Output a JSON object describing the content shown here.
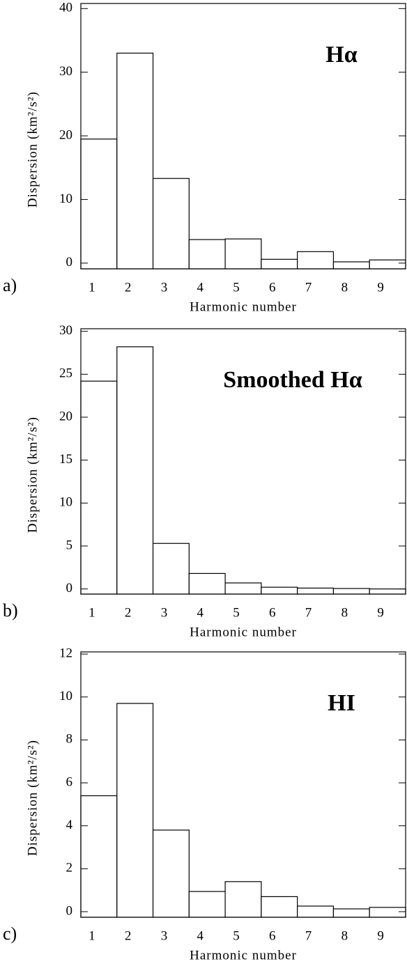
{
  "chart_data": [
    {
      "type": "bar",
      "label": "a)",
      "title": "Hα",
      "xlabel": "Harmonic number",
      "ylabel": "Dispersion (km²/s²)",
      "categories": [
        "1",
        "2",
        "3",
        "4",
        "5",
        "6",
        "7",
        "8",
        "9"
      ],
      "values": [
        19.5,
        33.0,
        13.3,
        3.7,
        3.8,
        0.6,
        1.8,
        0.2,
        0.5
      ],
      "ylim": [
        -0.9,
        40.8
      ],
      "yticks": [
        0,
        10,
        20,
        30,
        40
      ]
    },
    {
      "type": "bar",
      "label": "b)",
      "title": "Smoothed Hα",
      "xlabel": "Harmonic number",
      "ylabel": "Dispersion (km²/s²)",
      "categories": [
        "1",
        "2",
        "3",
        "4",
        "5",
        "6",
        "7",
        "8",
        "9"
      ],
      "values": [
        24.2,
        28.2,
        5.3,
        1.8,
        0.7,
        0.2,
        0.1,
        0.05,
        0
      ],
      "ylim": [
        -0.6,
        30.3
      ],
      "yticks": [
        0,
        5,
        10,
        15,
        20,
        25,
        30
      ]
    },
    {
      "type": "bar",
      "label": "c)",
      "title": "HI",
      "xlabel": "Harmonic number",
      "ylabel": "Dispersion (km²/s²)",
      "categories": [
        "1",
        "2",
        "3",
        "4",
        "5",
        "6",
        "7",
        "8",
        "9"
      ],
      "values": [
        5.4,
        9.7,
        3.8,
        0.94,
        1.4,
        0.7,
        0.26,
        0.13,
        0.2
      ],
      "ylim": [
        -0.26,
        12.1
      ],
      "yticks": [
        0,
        2,
        4,
        6,
        8,
        10,
        12
      ]
    }
  ]
}
